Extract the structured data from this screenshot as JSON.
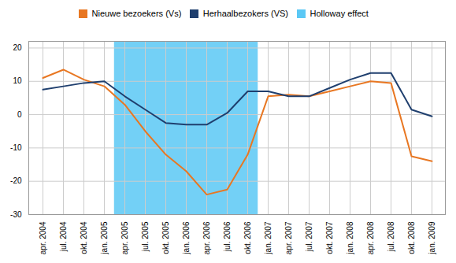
{
  "chart_data": {
    "type": "line",
    "categories": [
      "apr. 2004",
      "jul. 2004",
      "okt. 2004",
      "jan. 2005",
      "apr. 2005",
      "jul. 2005",
      "okt. 2005",
      "jan. 2006",
      "apr. 2006",
      "jul. 2006",
      "okt. 2006",
      "jan. 2007",
      "apr. 2007",
      "jul. 2007",
      "okt. 2007",
      "jan. 2008",
      "apr. 2008",
      "jul. 2008",
      "okt. 2008",
      "jan. 2009"
    ],
    "series": [
      {
        "name": "Nieuwe bezoekers (Vs)",
        "color": "#E87722",
        "values": [
          11.0,
          13.5,
          10.5,
          8.5,
          3.0,
          -5.0,
          -12.0,
          -17.0,
          -24.0,
          -22.5,
          -12.0,
          5.5,
          6.0,
          5.5,
          7.0,
          8.5,
          10.0,
          9.5,
          -12.5,
          -14.0
        ]
      },
      {
        "name": "Herhaalbezokers (VS)",
        "color": "#1F3F6E",
        "values": [
          7.5,
          8.5,
          9.5,
          10.0,
          5.5,
          1.5,
          -2.5,
          -3.0,
          -3.0,
          0.5,
          7.0,
          7.0,
          5.5,
          5.5,
          8.0,
          10.5,
          12.5,
          12.5,
          1.5,
          -0.5
        ]
      }
    ],
    "spans": [
      {
        "name": "Holloway effect",
        "color": "#5BC8F5",
        "start": "apr. 2005",
        "end": "okt. 2006"
      }
    ],
    "ylim": [
      -30,
      22
    ],
    "yticks": [
      -30,
      -20,
      -10,
      0,
      10,
      20
    ],
    "grid": true,
    "legend": "top"
  }
}
